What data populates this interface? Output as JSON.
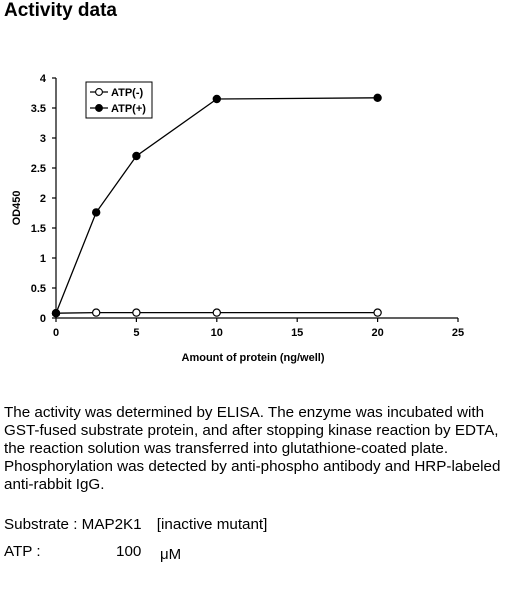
{
  "page": {
    "title": "Activity data"
  },
  "chart_data": {
    "type": "line",
    "title": "",
    "xlabel": "Amount of protein (ng/well)",
    "ylabel": "OD450",
    "xlim": [
      0,
      25
    ],
    "ylim": [
      0,
      4
    ],
    "x_ticks": [
      "0",
      "5",
      "10",
      "15",
      "20",
      "25"
    ],
    "y_ticks": [
      "0",
      "0.5",
      "1",
      "1.5",
      "2",
      "2.5",
      "3",
      "3.5",
      "4"
    ],
    "x": [
      0,
      2.5,
      5,
      10,
      20
    ],
    "series": [
      {
        "name": "ATP(-)",
        "marker": "open-circle",
        "values": [
          0.08,
          0.09,
          0.09,
          0.09,
          0.09
        ]
      },
      {
        "name": "ATP(+)",
        "marker": "filled-circle",
        "values": [
          0.08,
          1.76,
          2.7,
          3.65,
          3.67
        ]
      }
    ],
    "legend": "top-left",
    "grid": false
  },
  "description": "The activity was determined by ELISA. The enzyme was incubated with GST-fused substrate protein, and after stopping kinase reaction by EDTA, the reaction solution was transferred into glutathione-coated plate. Phosphorylation was detected by anti-phospho antibody and HRP-labeled anti-rabbit IgG.",
  "substrate": {
    "text": "Substrate : MAP2K1　[inactive mutant]"
  },
  "atp": {
    "label": "ATP :",
    "value": "100",
    "unit": "μM"
  }
}
